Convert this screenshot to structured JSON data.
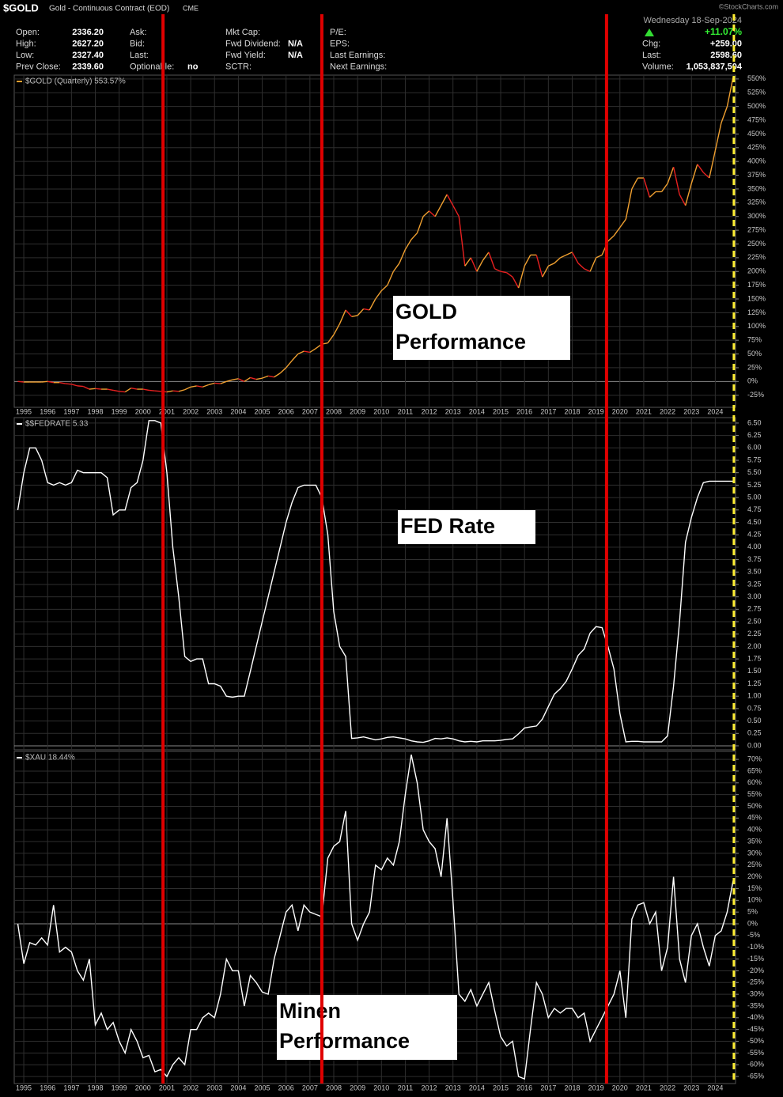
{
  "header": {
    "symbol": "$GOLD",
    "description": "Gold - Continuous Contract (EOD)",
    "exchange": "CME",
    "credit": "©StockCharts.com",
    "date": "Wednesday 18-Sep-2024",
    "change_pct": "+11.07%",
    "columns": [
      [
        {
          "label": "Open:",
          "value": "2336.20"
        },
        {
          "label": "High:",
          "value": "2627.20"
        },
        {
          "label": "Low:",
          "value": "2327.40"
        },
        {
          "label": "Prev Close:",
          "value": "2339.60"
        }
      ],
      [
        {
          "label": "Ask:"
        },
        {
          "label": "Bid:"
        },
        {
          "label": "Last:"
        },
        {
          "label": "Optionable:",
          "value": "no"
        }
      ],
      [
        {
          "label": "Mkt Cap:"
        },
        {
          "label": "Fwd Dividend:",
          "value": "N/A"
        },
        {
          "label": "Fwd Yield:",
          "value": "N/A"
        },
        {
          "label": "SCTR:"
        }
      ],
      [
        {
          "label": "P/E:"
        },
        {
          "label": "EPS:"
        },
        {
          "label": "Last Earnings:"
        },
        {
          "label": "Next Earnings:"
        }
      ],
      [
        {
          "label": "Chg:",
          "value": "+259.00"
        },
        {
          "label": "Last:",
          "value": "2598.60"
        },
        {
          "label": "Volume:",
          "value": "1,053,837,504"
        }
      ]
    ]
  },
  "chart_data": {
    "type": "line",
    "xlim": [
      1994.6,
      2024.85
    ],
    "xticks": [
      1995,
      1996,
      1997,
      1998,
      1999,
      2000,
      2001,
      2002,
      2003,
      2004,
      2005,
      2006,
      2007,
      2008,
      2009,
      2010,
      2011,
      2012,
      2013,
      2014,
      2015,
      2016,
      2017,
      2018,
      2019,
      2020,
      2021,
      2022,
      2023,
      2024
    ],
    "grid": true,
    "x": [
      1994.75,
      1995,
      1995.25,
      1995.5,
      1995.75,
      1996,
      1996.25,
      1996.5,
      1996.75,
      1997,
      1997.25,
      1997.5,
      1997.75,
      1998,
      1998.25,
      1998.5,
      1998.75,
      1999,
      1999.25,
      1999.5,
      1999.75,
      2000,
      2000.25,
      2000.5,
      2000.75,
      2001,
      2001.25,
      2001.5,
      2001.75,
      2002,
      2002.25,
      2002.5,
      2002.75,
      2003,
      2003.25,
      2003.5,
      2003.75,
      2004,
      2004.25,
      2004.5,
      2004.75,
      2005,
      2005.25,
      2005.5,
      2005.75,
      2006,
      2006.25,
      2006.5,
      2006.75,
      2007,
      2007.25,
      2007.5,
      2007.75,
      2008,
      2008.25,
      2008.5,
      2008.75,
      2009,
      2009.25,
      2009.5,
      2009.75,
      2010,
      2010.25,
      2010.5,
      2010.75,
      2011,
      2011.25,
      2011.5,
      2011.75,
      2012,
      2012.25,
      2012.5,
      2012.75,
      2013,
      2013.25,
      2013.5,
      2013.75,
      2014,
      2014.25,
      2014.5,
      2014.75,
      2015,
      2015.25,
      2015.5,
      2015.75,
      2016,
      2016.25,
      2016.5,
      2016.75,
      2017,
      2017.25,
      2017.5,
      2017.75,
      2018,
      2018.25,
      2018.5,
      2018.75,
      2019,
      2019.25,
      2019.5,
      2019.75,
      2020,
      2020.25,
      2020.5,
      2020.75,
      2021,
      2021.25,
      2021.5,
      2021.75,
      2022,
      2022.25,
      2022.5,
      2022.75,
      2023,
      2023.25,
      2023.5,
      2023.75,
      2024,
      2024.25,
      2024.5,
      2024.75
    ],
    "vertical_lines": [
      {
        "x": 2000.84,
        "color": "#e00000"
      },
      {
        "x": 2007.5,
        "color": "#e00000"
      },
      {
        "x": 2019.44,
        "color": "#e00000"
      },
      {
        "x": 2024.78,
        "color": "#ffee33",
        "dashed": true
      }
    ],
    "panels": [
      {
        "ylim": [
          -47,
          557
        ],
        "annotation": [
          "GOLD",
          "Performance"
        ],
        "yticks": [
          {
            "value": -25,
            "label": "-25%"
          },
          {
            "value": 0,
            "label": "0%"
          },
          {
            "value": 25,
            "label": "25%"
          },
          {
            "value": 50,
            "label": "50%"
          },
          {
            "value": 75,
            "label": "75%"
          },
          {
            "value": 100,
            "label": "100%"
          },
          {
            "value": 125,
            "label": "125%"
          },
          {
            "value": 150,
            "label": "150%"
          },
          {
            "value": 175,
            "label": "175%"
          },
          {
            "value": 200,
            "label": "200%"
          },
          {
            "value": 225,
            "label": "225%"
          },
          {
            "value": 250,
            "label": "250%"
          },
          {
            "value": 275,
            "label": "275%"
          },
          {
            "value": 300,
            "label": "300%"
          },
          {
            "value": 325,
            "label": "325%"
          },
          {
            "value": 350,
            "label": "350%"
          },
          {
            "value": 375,
            "label": "375%"
          },
          {
            "value": 400,
            "label": "400%"
          },
          {
            "value": 425,
            "label": "425%"
          },
          {
            "value": 450,
            "label": "450%"
          },
          {
            "value": 475,
            "label": "475%"
          },
          {
            "value": 500,
            "label": "500%"
          },
          {
            "value": 525,
            "label": "525%"
          },
          {
            "value": 550,
            "label": "550%"
          }
        ],
        "series": [
          {
            "name": "$GOLD (Quarterly) 553.57%",
            "color": "#f0a030",
            "down_color": "#e82020",
            "values": [
              0,
              -1,
              -1,
              -1,
              -1,
              0,
              -2,
              -2,
              -4,
              -5,
              -8,
              -9,
              -14,
              -13,
              -14,
              -14,
              -16,
              -18,
              -19,
              -12,
              -14,
              -14,
              -16,
              -17,
              -18,
              -19,
              -17,
              -18,
              -15,
              -10,
              -8,
              -10,
              -6,
              -3,
              -4,
              0,
              3,
              5,
              0,
              7,
              4,
              6,
              10,
              8,
              15,
              25,
              38,
              50,
              55,
              53,
              60,
              68,
              70,
              85,
              105,
              130,
              118,
              120,
              132,
              130,
              150,
              165,
              175,
              200,
              215,
              240,
              258,
              270,
              300,
              310,
              300,
              320,
              340,
              320,
              300,
              210,
              225,
              200,
              220,
              235,
              205,
              200,
              198,
              190,
              170,
              210,
              230,
              230,
              190,
              210,
              215,
              225,
              230,
              235,
              215,
              205,
              200,
              225,
              230,
              255,
              265,
              280,
              295,
              350,
              370,
              370,
              335,
              345,
              345,
              360,
              390,
              340,
              320,
              360,
              395,
              380,
              370,
              420,
              470,
              500,
              553.57
            ]
          }
        ]
      },
      {
        "ylim": [
          -0.08,
          6.61
        ],
        "annotation": [
          "FED Rate"
        ],
        "yticks": [
          {
            "value": 0,
            "label": "0.00"
          },
          0.25,
          {
            "value": 0.5,
            "label": "0.50"
          },
          0.75,
          {
            "value": 1,
            "label": "1.00"
          },
          1.25,
          {
            "value": 1.5,
            "label": "1.50"
          },
          1.75,
          {
            "value": 2,
            "label": "2.00"
          },
          2.25,
          {
            "value": 2.5,
            "label": "2.50"
          },
          2.75,
          {
            "value": 3,
            "label": "3.00"
          },
          3.25,
          {
            "value": 3.5,
            "label": "3.50"
          },
          3.75,
          {
            "value": 4,
            "label": "4.00"
          },
          4.25,
          {
            "value": 4.5,
            "label": "4.50"
          },
          4.75,
          {
            "value": 5,
            "label": "5.00"
          },
          5.25,
          {
            "value": 5.5,
            "label": "5.50"
          },
          5.75,
          {
            "value": 6,
            "label": "6.00"
          },
          6.25,
          {
            "value": 6.5,
            "label": "6.50"
          }
        ],
        "series": [
          {
            "name": "$$FEDRATE 5.33",
            "color": "#ffffff",
            "values": [
              4.75,
              5.5,
              6.0,
              6.0,
              5.75,
              5.3,
              5.25,
              5.3,
              5.25,
              5.3,
              5.55,
              5.5,
              5.5,
              5.5,
              5.5,
              5.4,
              4.65,
              4.75,
              4.75,
              5.2,
              5.3,
              5.75,
              6.55,
              6.55,
              6.5,
              5.5,
              4.0,
              3.0,
              1.8,
              1.7,
              1.75,
              1.75,
              1.25,
              1.25,
              1.2,
              1.0,
              0.98,
              1.0,
              1.0,
              1.5,
              2.0,
              2.5,
              3.0,
              3.5,
              4.0,
              4.5,
              4.9,
              5.2,
              5.25,
              5.25,
              5.25,
              5.0,
              4.25,
              2.7,
              2.0,
              1.8,
              0.15,
              0.16,
              0.18,
              0.15,
              0.12,
              0.14,
              0.17,
              0.18,
              0.16,
              0.14,
              0.1,
              0.08,
              0.07,
              0.1,
              0.15,
              0.14,
              0.16,
              0.14,
              0.1,
              0.08,
              0.09,
              0.08,
              0.1,
              0.1,
              0.1,
              0.11,
              0.13,
              0.14,
              0.24,
              0.36,
              0.38,
              0.4,
              0.54,
              0.79,
              1.04,
              1.15,
              1.3,
              1.55,
              1.82,
              1.95,
              2.27,
              2.4,
              2.38,
              2.0,
              1.55,
              0.65,
              0.08,
              0.09,
              0.09,
              0.08,
              0.08,
              0.08,
              0.08,
              0.2,
              1.2,
              2.5,
              4.1,
              4.6,
              5.0,
              5.3,
              5.33,
              5.33,
              5.33,
              5.33,
              5.33
            ]
          }
        ]
      },
      {
        "ylim": [
          -68,
          73.4
        ],
        "annotation": [
          "Minen",
          "Performance"
        ],
        "yticks": [
          {
            "value": -65,
            "label": "-65%"
          },
          {
            "value": -60,
            "label": "-60%"
          },
          {
            "value": -55,
            "label": "-55%"
          },
          {
            "value": -50,
            "label": "-50%"
          },
          {
            "value": -45,
            "label": "-45%"
          },
          {
            "value": -40,
            "label": "-40%"
          },
          {
            "value": -35,
            "label": "-35%"
          },
          {
            "value": -30,
            "label": "-30%"
          },
          {
            "value": -25,
            "label": "-25%"
          },
          {
            "value": -20,
            "label": "-20%"
          },
          {
            "value": -15,
            "label": "-15%"
          },
          {
            "value": -10,
            "label": "-10%"
          },
          {
            "value": -5,
            "label": "-5%"
          },
          {
            "value": 0,
            "label": "0%"
          },
          {
            "value": 5,
            "label": "5%"
          },
          {
            "value": 10,
            "label": "10%"
          },
          {
            "value": 15,
            "label": "15%"
          },
          {
            "value": 20,
            "label": "20%"
          },
          {
            "value": 25,
            "label": "25%"
          },
          {
            "value": 30,
            "label": "30%"
          },
          {
            "value": 35,
            "label": "35%"
          },
          {
            "value": 40,
            "label": "40%"
          },
          {
            "value": 45,
            "label": "45%"
          },
          {
            "value": 50,
            "label": "50%"
          },
          {
            "value": 55,
            "label": "55%"
          },
          {
            "value": 60,
            "label": "60%"
          },
          {
            "value": 65,
            "label": "65%"
          },
          {
            "value": 70,
            "label": "70%"
          }
        ],
        "series": [
          {
            "name": "$XAU 18.44%",
            "color": "#ffffff",
            "values": [
              0,
              -17,
              -8,
              -9,
              -6,
              -9,
              8,
              -12,
              -10,
              -12,
              -20,
              -24,
              -15,
              -43,
              -38,
              -45,
              -42,
              -50,
              -55,
              -45,
              -50,
              -57,
              -56,
              -63,
              -62,
              -65,
              -60,
              -57,
              -60,
              -45,
              -45,
              -40,
              -38,
              -40,
              -30,
              -15,
              -20,
              -20,
              -35,
              -22,
              -25,
              -29,
              -30,
              -15,
              -5,
              5,
              8,
              -3,
              8,
              5,
              4,
              3,
              28,
              33,
              35,
              48,
              0,
              -7,
              0,
              5,
              25,
              23,
              28,
              25,
              35,
              55,
              72,
              60,
              40,
              35,
              32,
              20,
              45,
              10,
              -30,
              -33,
              -28,
              -35,
              -30,
              -25,
              -37,
              -48,
              -52,
              -50,
              -65,
              -66,
              -45,
              -25,
              -30,
              -40,
              -36,
              -38,
              -36,
              -36,
              -40,
              -38,
              -50,
              -45,
              -40,
              -35,
              -30,
              -20,
              -40,
              2,
              8,
              9,
              0,
              5,
              -20,
              -10,
              20,
              -15,
              -25,
              -5,
              0,
              -10,
              -18,
              -5,
              -3,
              5,
              18.44
            ]
          }
        ]
      }
    ]
  }
}
